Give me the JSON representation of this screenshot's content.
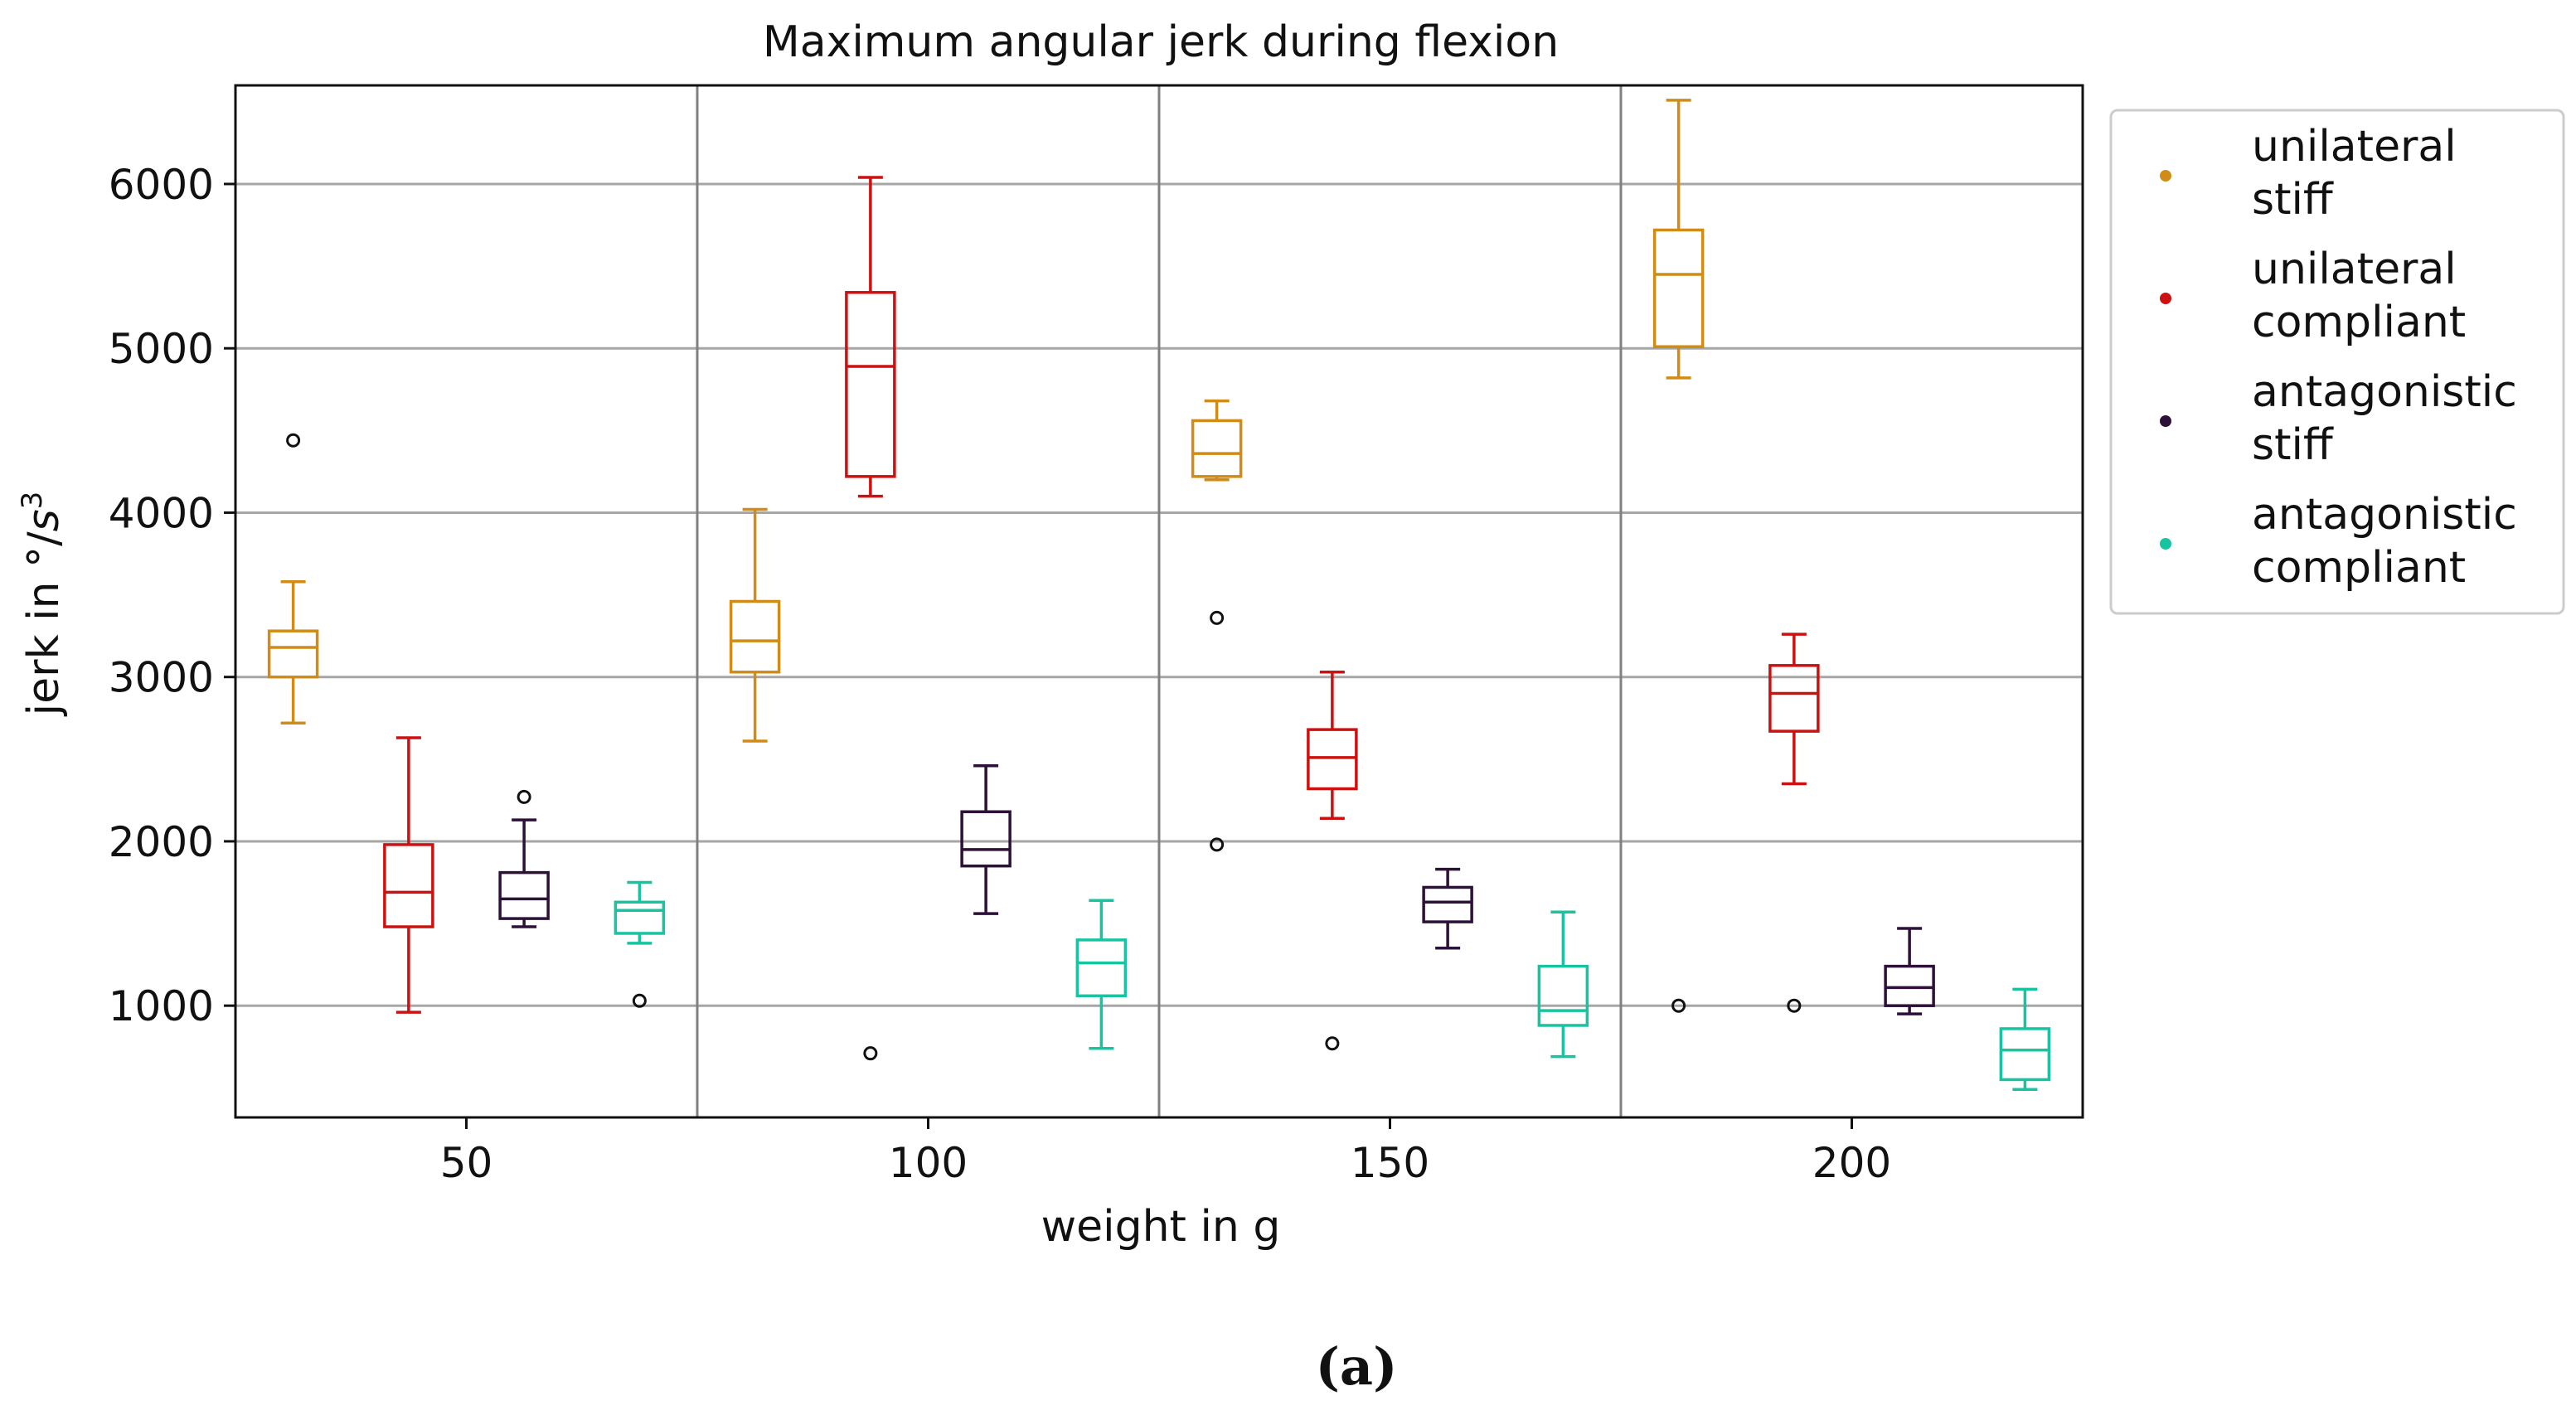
{
  "chart_data": {
    "type": "box",
    "title": "Maximum angular jerk during flexion",
    "xlabel": "weight in g",
    "ylabel_main": "jerk in °/",
    "ylabel_unit": "s",
    "ylabel_exp": "3",
    "categories": [
      "50",
      "100",
      "150",
      "200"
    ],
    "ylim": [
      320,
      6600
    ],
    "yticks": [
      1000,
      2000,
      3000,
      4000,
      5000,
      6000
    ],
    "grid": true,
    "legend_position": "outside-right",
    "series": [
      {
        "name": "unilateral stiff",
        "legend_lines": [
          "unilateral",
          "stiff"
        ],
        "color": "#d08c16",
        "boxes": [
          {
            "min": 2720,
            "q1": 3000,
            "median": 3180,
            "q3": 3280,
            "max": 3580,
            "outliers": [
              4440
            ]
          },
          {
            "min": 2610,
            "q1": 3030,
            "median": 3220,
            "q3": 3460,
            "max": 4020,
            "outliers": []
          },
          {
            "min": 4200,
            "q1": 4220,
            "median": 4360,
            "q3": 4560,
            "max": 4680,
            "outliers": [
              3360,
              1980
            ]
          },
          {
            "min": 4820,
            "q1": 5010,
            "median": 5450,
            "q3": 5720,
            "max": 6510,
            "outliers": [
              1000
            ]
          }
        ]
      },
      {
        "name": "unilateral compliant",
        "legend_lines": [
          "unilateral",
          "compliant"
        ],
        "color": "#cc1111",
        "boxes": [
          {
            "min": 960,
            "q1": 1480,
            "median": 1690,
            "q3": 1980,
            "max": 2630,
            "outliers": []
          },
          {
            "min": 4100,
            "q1": 4220,
            "median": 4890,
            "q3": 5340,
            "max": 6040,
            "outliers": [
              710
            ]
          },
          {
            "min": 2140,
            "q1": 2320,
            "median": 2510,
            "q3": 2680,
            "max": 3030,
            "outliers": [
              770
            ]
          },
          {
            "min": 2350,
            "q1": 2670,
            "median": 2900,
            "q3": 3070,
            "max": 3260,
            "outliers": [
              1000
            ]
          }
        ]
      },
      {
        "name": "antagonistic stiff",
        "legend_lines": [
          "antagonistic",
          "stiff"
        ],
        "color": "#2d1138",
        "boxes": [
          {
            "min": 1480,
            "q1": 1530,
            "median": 1650,
            "q3": 1810,
            "max": 2130,
            "outliers": [
              2270
            ]
          },
          {
            "min": 1560,
            "q1": 1850,
            "median": 1950,
            "q3": 2180,
            "max": 2460,
            "outliers": []
          },
          {
            "min": 1350,
            "q1": 1510,
            "median": 1630,
            "q3": 1720,
            "max": 1830,
            "outliers": []
          },
          {
            "min": 950,
            "q1": 1000,
            "median": 1110,
            "q3": 1240,
            "max": 1470,
            "outliers": []
          }
        ]
      },
      {
        "name": "antagonistic compliant",
        "legend_lines": [
          "antagonistic",
          "compliant"
        ],
        "color": "#18c4a0",
        "boxes": [
          {
            "min": 1380,
            "q1": 1440,
            "median": 1580,
            "q3": 1630,
            "max": 1750,
            "outliers": [
              1030
            ]
          },
          {
            "min": 740,
            "q1": 1060,
            "median": 1260,
            "q3": 1400,
            "max": 1640,
            "outliers": []
          },
          {
            "min": 690,
            "q1": 880,
            "median": 970,
            "q3": 1240,
            "max": 1570,
            "outliers": []
          },
          {
            "min": 490,
            "q1": 550,
            "median": 730,
            "q3": 860,
            "max": 1100,
            "outliers": []
          }
        ]
      }
    ]
  },
  "caption": "(a)"
}
